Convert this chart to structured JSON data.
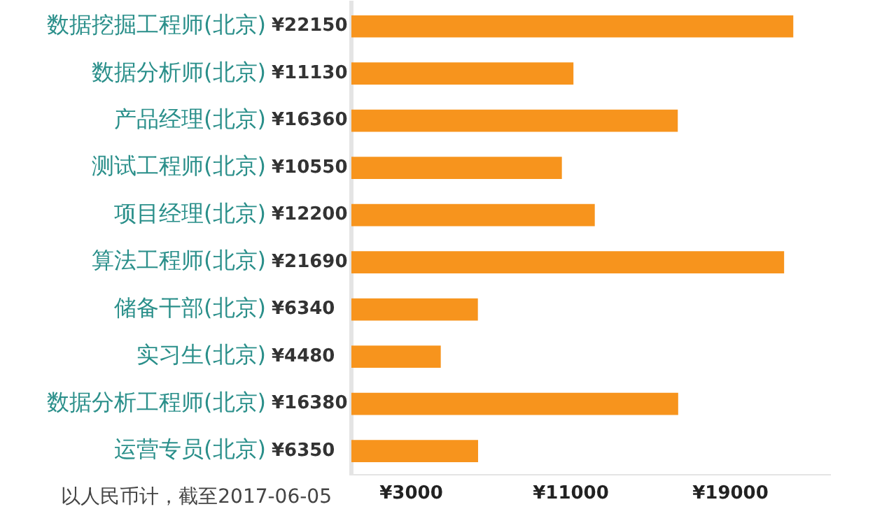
{
  "chart_data": {
    "type": "bar",
    "orientation": "horizontal",
    "categories": [
      "数据挖掘工程师(北京)",
      "数据分析师(北京)",
      "产品经理(北京)",
      "测试工程师(北京)",
      "项目经理(北京)",
      "算法工程师(北京)",
      "储备干部(北京)",
      "实习生(北京)",
      "数据分析工程师(北京)",
      "运营专员(北京)"
    ],
    "values": [
      22150,
      11130,
      16360,
      10550,
      12200,
      21690,
      6340,
      4480,
      16380,
      6350
    ],
    "value_labels": [
      "¥22150",
      "¥11130",
      "¥16360",
      "¥10550",
      "¥12200",
      "¥21690",
      "¥6340",
      "¥4480",
      "¥16380",
      "¥6350"
    ],
    "color": "#f7941d",
    "xlim": [
      0,
      24000
    ],
    "xticks": [
      {
        "value": 3000,
        "label": "¥3000"
      },
      {
        "value": 11000,
        "label": "¥11000"
      },
      {
        "value": 19000,
        "label": "¥19000"
      }
    ],
    "grid": false,
    "legend": false,
    "annotations": [
      "以人民币计，截至2017-06-05"
    ]
  }
}
